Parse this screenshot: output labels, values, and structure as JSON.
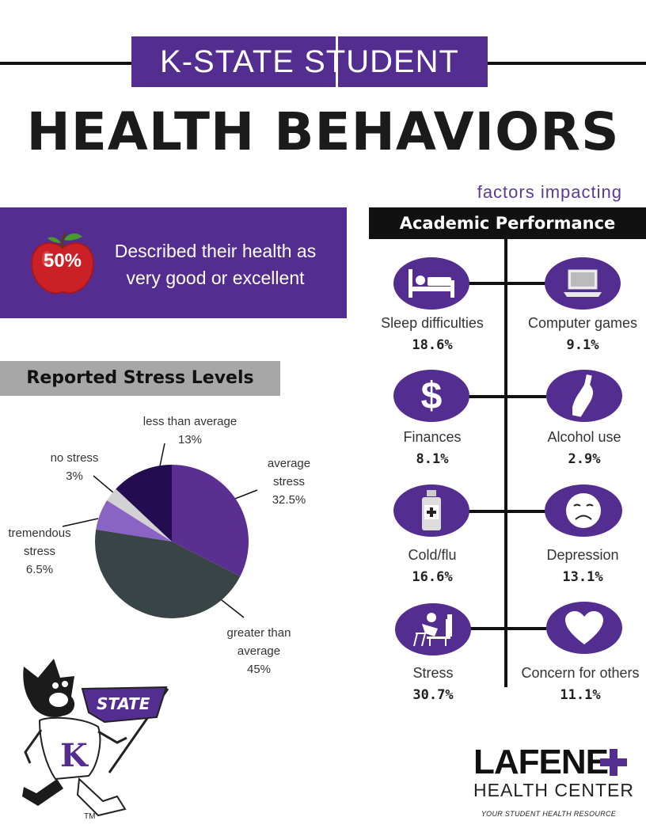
{
  "header": {
    "subtitle": "K-STATE STUDENT",
    "title": "HEALTH BEHAVIORS"
  },
  "health_banner": {
    "percent": "50%",
    "description": "Described their health as very good or excellent"
  },
  "stress": {
    "title": "Reported Stress Levels",
    "labels": {
      "less_than_average": {
        "name": "less than average",
        "pct": "13%"
      },
      "no_stress": {
        "name": "no stress",
        "pct": "3%"
      },
      "average": {
        "name1": "average",
        "name2": "stress",
        "pct": "32.5%"
      },
      "tremendous": {
        "name1": "tremendous",
        "name2": "stress",
        "pct": "6.5%"
      },
      "greater_than_average": {
        "name1": "greater than",
        "name2": "average",
        "pct": "45%"
      }
    }
  },
  "chart_data": {
    "type": "pie",
    "title": "Reported Stress Levels",
    "slices": [
      {
        "label": "average stress",
        "value": 32.5,
        "color": "#5a2f91"
      },
      {
        "label": "greater than average",
        "value": 45,
        "color": "#394447"
      },
      {
        "label": "tremendous stress",
        "value": 6.5,
        "color": "#8a63c4"
      },
      {
        "label": "no stress",
        "value": 3,
        "color": "#d2d2d2"
      },
      {
        "label": "less than average",
        "value": 13,
        "color": "#230c50"
      }
    ]
  },
  "academic": {
    "kicker": "factors impacting",
    "title": "Academic Performance",
    "factors": {
      "sleep": {
        "label": "Sleep difficulties",
        "value": "18.6%",
        "icon": "bed-icon"
      },
      "computer": {
        "label": "Computer games",
        "value": "9.1%",
        "icon": "laptop-icon"
      },
      "finances": {
        "label": "Finances",
        "value": "8.1%",
        "icon": "dollar-icon"
      },
      "alcohol": {
        "label": "Alcohol use",
        "value": "2.9%",
        "icon": "bottle-icon"
      },
      "cold": {
        "label": "Cold/flu",
        "value": "16.6%",
        "icon": "medicine-icon"
      },
      "depression": {
        "label": "Depression",
        "value": "13.1%",
        "icon": "sad-face-icon"
      },
      "stress": {
        "label": "Stress",
        "value": "30.7%",
        "icon": "stressed-student-icon"
      },
      "concern": {
        "label": "Concern for others",
        "value": "11.1%",
        "icon": "heart-icon"
      }
    }
  },
  "mascot": {
    "flag_text": "STATE",
    "letter": "K",
    "tm": "TM"
  },
  "logo": {
    "name": "LAFENE",
    "subtitle": "HEALTH CENTER",
    "tagline": "YOUR STUDENT HEALTH RESOURCE",
    "accent": "#532d8f"
  }
}
